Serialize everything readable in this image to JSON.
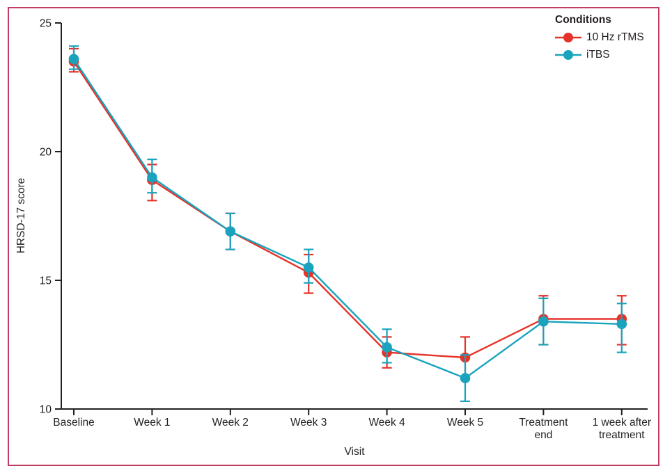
{
  "figure": {
    "ylabel": "HRSD-17 score",
    "xlabel": "Visit",
    "legend_title": "Conditions"
  },
  "chart_data": {
    "type": "line",
    "title": "",
    "xlabel": "Visit",
    "ylabel": "HRSD-17 score",
    "ylim": [
      10,
      25
    ],
    "yticks": [
      10,
      15,
      20,
      25
    ],
    "grid": false,
    "legend_position": "top-right",
    "legend_title": "Conditions",
    "axis_color": "#231f20",
    "frame_color": "#c23b60",
    "categories": [
      "Baseline",
      "Week 1",
      "Week 2",
      "Week 3",
      "Week 4",
      "Week 5",
      "Treatment\nend",
      "1 week after\ntreatment"
    ],
    "series": [
      {
        "name": "10 Hz rTMS",
        "color": "#e63329",
        "values": [
          23.5,
          18.9,
          16.9,
          15.3,
          12.2,
          12.0,
          13.5,
          13.5
        ],
        "err_low": [
          23.1,
          18.1,
          16.2,
          14.5,
          11.6,
          11.2,
          12.5,
          12.5
        ],
        "err_high": [
          24.0,
          19.5,
          17.6,
          16.0,
          12.8,
          12.8,
          14.4,
          14.4
        ]
      },
      {
        "name": "iTBS",
        "color": "#19a3bd",
        "values": [
          23.6,
          19.0,
          16.9,
          15.5,
          12.4,
          11.2,
          13.4,
          13.3
        ],
        "err_low": [
          23.2,
          18.4,
          16.2,
          14.9,
          11.8,
          10.3,
          12.5,
          12.2
        ],
        "err_high": [
          24.1,
          19.7,
          17.6,
          16.2,
          13.1,
          12.1,
          14.3,
          14.1
        ]
      }
    ]
  }
}
